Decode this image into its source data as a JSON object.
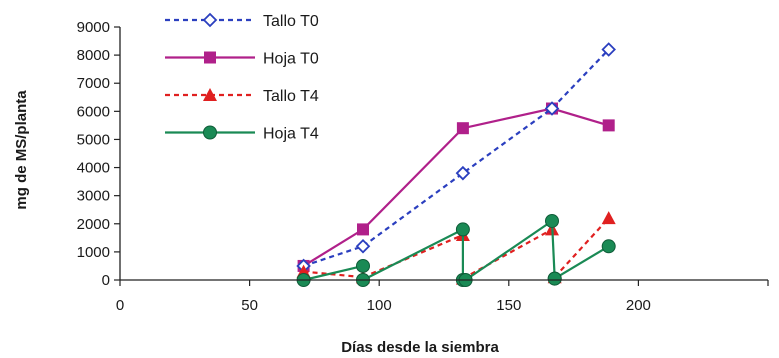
{
  "chart_data": {
    "type": "line",
    "xlabel": "Días desde la siembra",
    "ylabel": "mg de MS/planta",
    "xlim": [
      0,
      240
    ],
    "ylim": [
      0,
      9000
    ],
    "x_ticks": [
      "0",
      "50",
      "100",
      "150",
      "200",
      ""
    ],
    "y_ticks": [
      "0",
      "1000",
      "2000",
      "3000",
      "4000",
      "5000",
      "6000",
      "7000",
      "8000",
      "9000"
    ],
    "legend_position": "top-left",
    "grid": false,
    "series": [
      {
        "name": "Tallo T0",
        "color": "#2b3fbf",
        "dash": "dotted",
        "marker": "diamond-open",
        "x": [
          68,
          90,
          127,
          160,
          181
        ],
        "y": [
          500,
          1200,
          3800,
          6100,
          8200
        ]
      },
      {
        "name": "Hoja T0",
        "color": "#b0208a",
        "dash": "solid",
        "marker": "square",
        "x": [
          68,
          90,
          127,
          160,
          181
        ],
        "y": [
          500,
          1800,
          5400,
          6100,
          5500
        ]
      },
      {
        "name": "Tallo T4",
        "color": "#e02020",
        "dash": "dotted",
        "marker": "triangle",
        "segments": [
          {
            "x": [
              68,
              90
            ],
            "y": [
              300,
              100
            ]
          },
          {
            "x": [
              90,
              127
            ],
            "y": [
              100,
              1600
            ]
          },
          {
            "x": [
              127,
              160
            ],
            "y": [
              50,
              1800
            ]
          },
          {
            "x": [
              161,
              181
            ],
            "y": [
              100,
              2200
            ]
          }
        ]
      },
      {
        "name": "Hoja T4",
        "color": "#1a8a55",
        "dash": "solid",
        "marker": "circle",
        "segments": [
          {
            "x": [
              68,
              90
            ],
            "y": [
              0,
              500
            ]
          },
          {
            "x": [
              90,
              127,
              127
            ],
            "y": [
              0,
              1800,
              0
            ]
          },
          {
            "x": [
              128,
              160,
              161
            ],
            "y": [
              0,
              2100,
              50
            ]
          },
          {
            "x": [
              161,
              181
            ],
            "y": [
              50,
              1200
            ]
          }
        ]
      }
    ]
  }
}
